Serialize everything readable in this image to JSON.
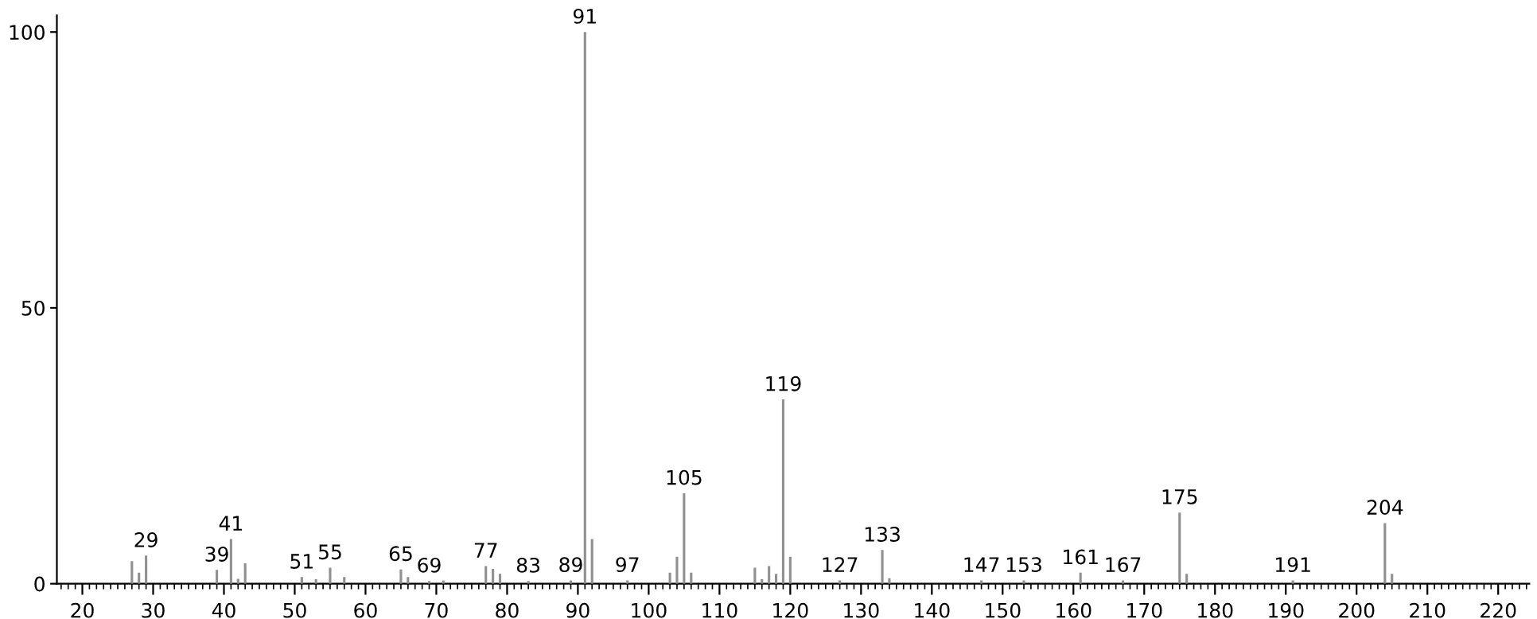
{
  "chart_data": {
    "type": "bar",
    "x": [
      27,
      28,
      29,
      39,
      41,
      42,
      43,
      51,
      53,
      55,
      57,
      65,
      66,
      69,
      71,
      77,
      78,
      79,
      83,
      89,
      91,
      92,
      97,
      103,
      104,
      105,
      106,
      115,
      116,
      117,
      118,
      119,
      120,
      127,
      133,
      134,
      147,
      153,
      161,
      167,
      175,
      176,
      191,
      204,
      205
    ],
    "values": [
      4.1,
      2,
      5.1,
      2.5,
      8.1,
      0.9,
      3.7,
      1.2,
      0.8,
      2.9,
      1.2,
      2.6,
      1.2,
      0.5,
      0.6,
      3.2,
      2.7,
      1.8,
      0.5,
      0.6,
      100,
      8.1,
      0.6,
      2,
      4.9,
      16.4,
      2,
      2.9,
      0.8,
      3.2,
      1.8,
      33.4,
      4.9,
      0.6,
      6.1,
      1,
      0.6,
      0.6,
      2,
      0.6,
      12.9,
      1.8,
      0.6,
      11,
      1.8
    ],
    "color": "#909090",
    "xlim": [
      16.4,
      224.4
    ],
    "ylim": [
      0,
      103
    ],
    "xticks": [
      20,
      30,
      40,
      50,
      60,
      70,
      80,
      90,
      100,
      110,
      120,
      130,
      140,
      150,
      160,
      170,
      180,
      190,
      200,
      210,
      220
    ],
    "yticks": [
      0,
      50,
      100
    ],
    "grid": false,
    "annotations": [
      {
        "text": "29",
        "x": 29,
        "y": 5.1
      },
      {
        "text": "39",
        "x": 39,
        "y": 2.5
      },
      {
        "text": "41",
        "x": 41,
        "y": 8.1
      },
      {
        "text": "51",
        "x": 51,
        "y": 1.2
      },
      {
        "text": "55",
        "x": 55,
        "y": 2.9
      },
      {
        "text": "65",
        "x": 65,
        "y": 2.6
      },
      {
        "text": "69",
        "x": 69,
        "y": 0.5
      },
      {
        "text": "77",
        "x": 77,
        "y": 3.2
      },
      {
        "text": "83",
        "x": 83,
        "y": 0.5
      },
      {
        "text": "89",
        "x": 89,
        "y": 0.6
      },
      {
        "text": "91",
        "x": 91,
        "y": 100
      },
      {
        "text": "97",
        "x": 97,
        "y": 0.6
      },
      {
        "text": "105",
        "x": 105,
        "y": 16.4
      },
      {
        "text": "119",
        "x": 119,
        "y": 33.4
      },
      {
        "text": "127",
        "x": 127,
        "y": 0.6
      },
      {
        "text": "133",
        "x": 133,
        "y": 6.1
      },
      {
        "text": "147",
        "x": 147,
        "y": 0.6
      },
      {
        "text": "153",
        "x": 153,
        "y": 0.6
      },
      {
        "text": "161",
        "x": 161,
        "y": 2
      },
      {
        "text": "167",
        "x": 167,
        "y": 0.6
      },
      {
        "text": "175",
        "x": 175,
        "y": 12.9
      },
      {
        "text": "191",
        "x": 191,
        "y": 0.6
      },
      {
        "text": "204",
        "x": 204,
        "y": 11
      }
    ]
  }
}
